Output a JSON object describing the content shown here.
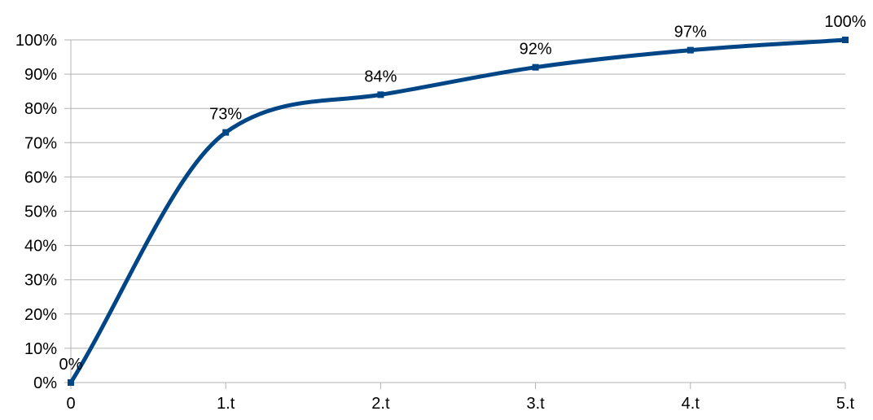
{
  "chart_data": {
    "type": "line",
    "title": "",
    "xlabel": "",
    "ylabel": "",
    "categories": [
      "0",
      "1.t",
      "2.t",
      "3.t",
      "4.t",
      "5.t"
    ],
    "series": [
      {
        "values": [
          0,
          73,
          84,
          92,
          97,
          100
        ],
        "data_labels": [
          "0%",
          "73%",
          "84%",
          "92%",
          "97%",
          "100%"
        ],
        "color": "#004586",
        "smooth": true,
        "marker": "square"
      }
    ],
    "ylim": [
      0,
      100
    ],
    "y_ticks": [
      0,
      10,
      20,
      30,
      40,
      50,
      60,
      70,
      80,
      90,
      100
    ],
    "y_tick_labels": [
      "0%",
      "10%",
      "20%",
      "30%",
      "40%",
      "50%",
      "60%",
      "70%",
      "80%",
      "90%",
      "100%"
    ],
    "grid": true,
    "legend": "none"
  }
}
